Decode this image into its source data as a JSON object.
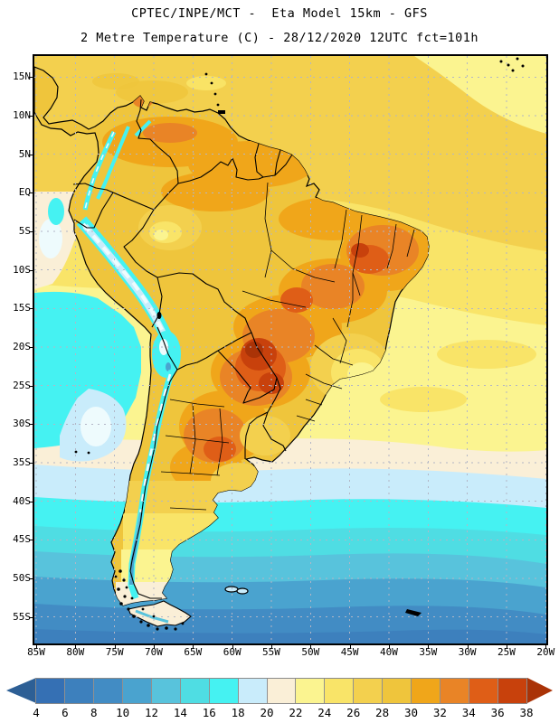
{
  "header": {
    "title_line1": "CPTEC/INPE/MCT -  Eta Model 15km - GFS",
    "title_line2": "2 Metre Temperature (C) - 28/12/2020 12UTC fct=101h"
  },
  "axes": {
    "lat_ticks": [
      "15N",
      "10N",
      "5N",
      "EQ",
      "5S",
      "10S",
      "15S",
      "20S",
      "25S",
      "30S",
      "35S",
      "40S",
      "45S",
      "50S",
      "55S"
    ],
    "lon_ticks": [
      "85W",
      "80W",
      "75W",
      "70W",
      "65W",
      "60W",
      "55W",
      "50W",
      "45W",
      "40W",
      "35W",
      "30W",
      "25W",
      "20W"
    ]
  },
  "colorbar": {
    "tick_labels": [
      "4",
      "6",
      "8",
      "10",
      "12",
      "14",
      "16",
      "18",
      "20",
      "22",
      "24",
      "26",
      "28",
      "30",
      "32",
      "34",
      "36",
      "38"
    ],
    "segment_keys": [
      "t4",
      "t6",
      "t8",
      "t10",
      "t12",
      "t14",
      "t16",
      "t18",
      "t20",
      "t22",
      "t24",
      "t26",
      "t28",
      "t30",
      "t32",
      "t34",
      "t36"
    ]
  },
  "palette": {
    "below4": "#2d5f95",
    "t4": "#3570b4",
    "t6": "#3d80bd",
    "t8": "#428cc4",
    "t10": "#4aa3cf",
    "t12": "#58c3dc",
    "t14": "#4fdde3",
    "t16": "#45f2f2",
    "t18": "#c9ecfb",
    "t20": "#faefd7",
    "t22": "#fbf490",
    "t24": "#f9e468",
    "t26": "#f3d04e",
    "t28": "#efc53c",
    "t30": "#f0a61a",
    "t32": "#e98426",
    "t34": "#df5e17",
    "t36": "#c8410c",
    "above38": "#aa3307",
    "andes_white": "#eefbfd",
    "grid": "#b2b6c6"
  },
  "chart_data": {
    "type": "heatmap",
    "title": "CPTEC/INPE/MCT -  Eta Model 15km - GFS",
    "subtitle": "2 Metre Temperature (C) - 28/12/2020 12UTC fct=101h",
    "variable": "2 Metre Temperature",
    "units": "C",
    "run": "28/12/2020 12UTC",
    "forecast": "fct=101h",
    "x_ticks": [
      "85W",
      "80W",
      "75W",
      "70W",
      "65W",
      "60W",
      "55W",
      "50W",
      "45W",
      "40W",
      "35W",
      "30W",
      "25W",
      "20W"
    ],
    "y_ticks": [
      "15N",
      "10N",
      "5N",
      "EQ",
      "5S",
      "10S",
      "15S",
      "20S",
      "25S",
      "30S",
      "35S",
      "40S",
      "45S",
      "50S",
      "55S"
    ],
    "scale_values": [
      4,
      6,
      8,
      10,
      12,
      14,
      16,
      18,
      20,
      22,
      24,
      26,
      28,
      30,
      32,
      34,
      36,
      38
    ],
    "scale_colors": [
      "#2d5f95",
      "#3570b4",
      "#3d80bd",
      "#428cc4",
      "#4aa3cf",
      "#58c3dc",
      "#4fdde3",
      "#45f2f2",
      "#c9ecfb",
      "#faefd7",
      "#fbf490",
      "#f9e468",
      "#f3d04e",
      "#efc53c",
      "#f0a61a",
      "#e98426",
      "#df5e17",
      "#c8410c",
      "#aa3307"
    ],
    "legend_position": "bottom",
    "grid": true
  }
}
